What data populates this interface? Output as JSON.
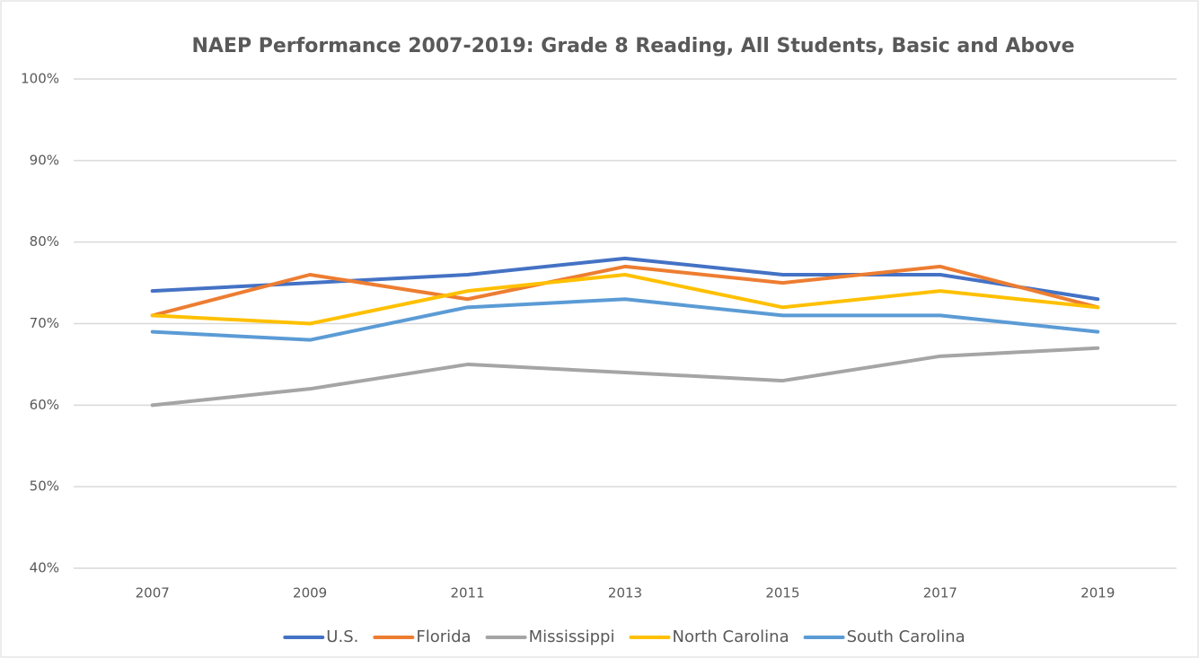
{
  "chart_data": {
    "type": "line",
    "title": "NAEP Performance 2007-2019: Grade 8 Reading, All Students, Basic and Above",
    "categories": [
      "2007",
      "2009",
      "2011",
      "2013",
      "2015",
      "2017",
      "2019"
    ],
    "series": [
      {
        "name": "U.S.",
        "color": "#4472c4",
        "values": [
          74,
          75,
          76,
          78,
          76,
          76,
          73
        ]
      },
      {
        "name": "Florida",
        "color": "#ed7d31",
        "values": [
          71,
          76,
          73,
          77,
          75,
          77,
          72
        ]
      },
      {
        "name": "Mississippi",
        "color": "#a5a5a5",
        "values": [
          60,
          62,
          65,
          64,
          63,
          66,
          67
        ]
      },
      {
        "name": "North Carolina",
        "color": "#ffc000",
        "values": [
          71,
          70,
          74,
          76,
          72,
          74,
          72
        ]
      },
      {
        "name": "South Carolina",
        "color": "#5b9bd5",
        "values": [
          69,
          68,
          72,
          73,
          71,
          71,
          69
        ]
      }
    ],
    "ylim": [
      40,
      100
    ],
    "yticks": [
      {
        "value": 40,
        "label": "40%"
      },
      {
        "value": 50,
        "label": "50%"
      },
      {
        "value": 60,
        "label": "60%"
      },
      {
        "value": 70,
        "label": "70%"
      },
      {
        "value": 80,
        "label": "80%"
      },
      {
        "value": 90,
        "label": "90%"
      },
      {
        "value": 100,
        "label": "100%"
      }
    ],
    "grid": true,
    "legend": "bottom"
  }
}
